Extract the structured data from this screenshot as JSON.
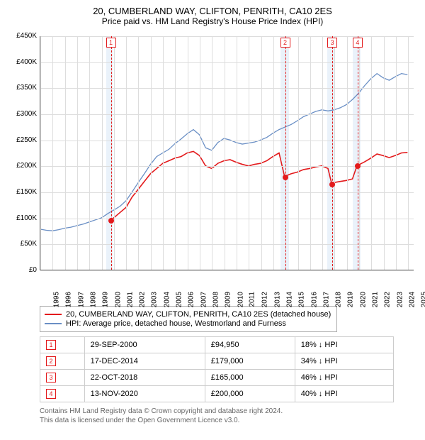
{
  "title_line1": "20, CUMBERLAND WAY, CLIFTON, PENRITH, CA10 2ES",
  "title_line2": "Price paid vs. HM Land Registry's House Price Index (HPI)",
  "chart": {
    "type": "line",
    "background_color": "#ffffff",
    "grid_color": "#dddddd",
    "shade_color": "#d6e6f5",
    "xlim": [
      1995,
      2025.5
    ],
    "ylim": [
      0,
      450000
    ],
    "yticks": [
      0,
      50000,
      100000,
      150000,
      200000,
      250000,
      300000,
      350000,
      400000,
      450000
    ],
    "ytick_labels": [
      "£0",
      "£50K",
      "£100K",
      "£150K",
      "£200K",
      "£250K",
      "£300K",
      "£350K",
      "£400K",
      "£450K"
    ],
    "xticks": [
      1995,
      1996,
      1997,
      1998,
      1999,
      2000,
      2001,
      2002,
      2003,
      2004,
      2005,
      2006,
      2007,
      2008,
      2009,
      2010,
      2011,
      2012,
      2013,
      2014,
      2015,
      2016,
      2017,
      2018,
      2019,
      2020,
      2021,
      2022,
      2023,
      2024,
      2025
    ],
    "label_fontsize": 10,
    "shaded_ranges": [
      [
        2000.4,
        2000.9
      ],
      [
        2014.6,
        2015.3
      ],
      [
        2018.4,
        2019.0
      ],
      [
        2020.5,
        2021.1
      ]
    ],
    "series_prop": {
      "color": "#e31a1c",
      "line_width": 1.6,
      "data": [
        [
          2000.75,
          94950
        ],
        [
          2001,
          100000
        ],
        [
          2001.5,
          110000
        ],
        [
          2002,
          120000
        ],
        [
          2002.5,
          140000
        ],
        [
          2003,
          155000
        ],
        [
          2003.5,
          170000
        ],
        [
          2004,
          185000
        ],
        [
          2004.5,
          195000
        ],
        [
          2005,
          205000
        ],
        [
          2005.5,
          210000
        ],
        [
          2006,
          215000
        ],
        [
          2006.5,
          218000
        ],
        [
          2007,
          225000
        ],
        [
          2007.5,
          228000
        ],
        [
          2008,
          220000
        ],
        [
          2008.5,
          200000
        ],
        [
          2009,
          195000
        ],
        [
          2009.5,
          205000
        ],
        [
          2010,
          210000
        ],
        [
          2010.5,
          212000
        ],
        [
          2011,
          207000
        ],
        [
          2011.5,
          203000
        ],
        [
          2012,
          200000
        ],
        [
          2012.5,
          203000
        ],
        [
          2013,
          205000
        ],
        [
          2013.5,
          210000
        ],
        [
          2014,
          218000
        ],
        [
          2014.5,
          225000
        ],
        [
          2014.96,
          179000
        ],
        [
          2015.2,
          182000
        ],
        [
          2015.5,
          185000
        ],
        [
          2016,
          188000
        ],
        [
          2016.5,
          193000
        ],
        [
          2017,
          195000
        ],
        [
          2017.5,
          198000
        ],
        [
          2018,
          200000
        ],
        [
          2018.5,
          195000
        ],
        [
          2018.81,
          165000
        ],
        [
          2019,
          168000
        ],
        [
          2019.5,
          170000
        ],
        [
          2020,
          172000
        ],
        [
          2020.5,
          175000
        ],
        [
          2020.87,
          200000
        ],
        [
          2021,
          202000
        ],
        [
          2021.5,
          208000
        ],
        [
          2022,
          215000
        ],
        [
          2022.5,
          223000
        ],
        [
          2023,
          220000
        ],
        [
          2023.5,
          216000
        ],
        [
          2024,
          220000
        ],
        [
          2024.5,
          225000
        ],
        [
          2025,
          226000
        ]
      ]
    },
    "series_hpi": {
      "color": "#6a8fc5",
      "line_width": 1.3,
      "data": [
        [
          1995,
          78000
        ],
        [
          1995.5,
          76000
        ],
        [
          1996,
          75000
        ],
        [
          1996.5,
          77000
        ],
        [
          1997,
          80000
        ],
        [
          1997.5,
          82000
        ],
        [
          1998,
          85000
        ],
        [
          1998.5,
          88000
        ],
        [
          1999,
          92000
        ],
        [
          1999.5,
          96000
        ],
        [
          2000,
          100000
        ],
        [
          2000.5,
          108000
        ],
        [
          2001,
          115000
        ],
        [
          2001.5,
          122000
        ],
        [
          2002,
          133000
        ],
        [
          2002.5,
          150000
        ],
        [
          2003,
          168000
        ],
        [
          2003.5,
          185000
        ],
        [
          2004,
          203000
        ],
        [
          2004.5,
          218000
        ],
        [
          2005,
          225000
        ],
        [
          2005.5,
          232000
        ],
        [
          2006,
          243000
        ],
        [
          2006.5,
          252000
        ],
        [
          2007,
          262000
        ],
        [
          2007.5,
          270000
        ],
        [
          2008,
          260000
        ],
        [
          2008.5,
          235000
        ],
        [
          2009,
          230000
        ],
        [
          2009.5,
          245000
        ],
        [
          2010,
          253000
        ],
        [
          2010.5,
          250000
        ],
        [
          2011,
          245000
        ],
        [
          2011.5,
          242000
        ],
        [
          2012,
          244000
        ],
        [
          2012.5,
          246000
        ],
        [
          2013,
          250000
        ],
        [
          2013.5,
          255000
        ],
        [
          2014,
          263000
        ],
        [
          2014.5,
          270000
        ],
        [
          2015,
          275000
        ],
        [
          2015.5,
          280000
        ],
        [
          2016,
          287000
        ],
        [
          2016.5,
          295000
        ],
        [
          2017,
          300000
        ],
        [
          2017.5,
          305000
        ],
        [
          2018,
          308000
        ],
        [
          2018.5,
          306000
        ],
        [
          2019,
          308000
        ],
        [
          2019.5,
          312000
        ],
        [
          2020,
          318000
        ],
        [
          2020.5,
          328000
        ],
        [
          2021,
          340000
        ],
        [
          2021.5,
          355000
        ],
        [
          2022,
          368000
        ],
        [
          2022.5,
          378000
        ],
        [
          2023,
          370000
        ],
        [
          2023.5,
          365000
        ],
        [
          2024,
          372000
        ],
        [
          2024.5,
          378000
        ],
        [
          2025,
          376000
        ]
      ]
    },
    "markers": [
      {
        "n": "1",
        "x": 2000.75,
        "y": 94950
      },
      {
        "n": "2",
        "x": 2014.96,
        "y": 179000
      },
      {
        "n": "3",
        "x": 2018.81,
        "y": 165000
      },
      {
        "n": "4",
        "x": 2020.87,
        "y": 200000
      }
    ]
  },
  "legend": {
    "items": [
      {
        "color": "#e31a1c",
        "label": "20, CUMBERLAND WAY, CLIFTON, PENRITH, CA10 2ES (detached house)"
      },
      {
        "color": "#6a8fc5",
        "label": "HPI: Average price, detached house, Westmorland and Furness"
      }
    ]
  },
  "sales": [
    {
      "n": "1",
      "date": "29-SEP-2000",
      "price": "£94,950",
      "delta": "18% ↓ HPI"
    },
    {
      "n": "2",
      "date": "17-DEC-2014",
      "price": "£179,000",
      "delta": "34% ↓ HPI"
    },
    {
      "n": "3",
      "date": "22-OCT-2018",
      "price": "£165,000",
      "delta": "46% ↓ HPI"
    },
    {
      "n": "4",
      "date": "13-NOV-2020",
      "price": "£200,000",
      "delta": "40% ↓ HPI"
    }
  ],
  "footer_line1": "Contains HM Land Registry data © Crown copyright and database right 2024.",
  "footer_line2": "This data is licensed under the Open Government Licence v3.0."
}
